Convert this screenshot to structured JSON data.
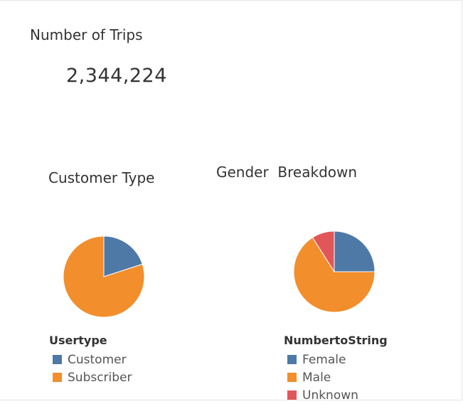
{
  "kpi": {
    "title": "Number of Trips",
    "value": "2,344,224"
  },
  "chart_data": [
    {
      "type": "pie",
      "title": "Customer Type",
      "legend_title": "Usertype",
      "legend_position": "bottom",
      "slices": [
        {
          "label": "Customer",
          "value": 20,
          "color": "#4e79a7"
        },
        {
          "label": "Subscriber",
          "value": 80,
          "color": "#f28e2b"
        }
      ]
    },
    {
      "type": "pie",
      "title": "Gender  Breakdown",
      "legend_title": "NumbertoString",
      "legend_position": "bottom",
      "slices": [
        {
          "label": "Female",
          "value": 25,
          "color": "#4e79a7"
        },
        {
          "label": "Male",
          "value": 66,
          "color": "#f28e2b"
        },
        {
          "label": "Unknown",
          "value": 9,
          "color": "#e15759"
        }
      ]
    }
  ]
}
